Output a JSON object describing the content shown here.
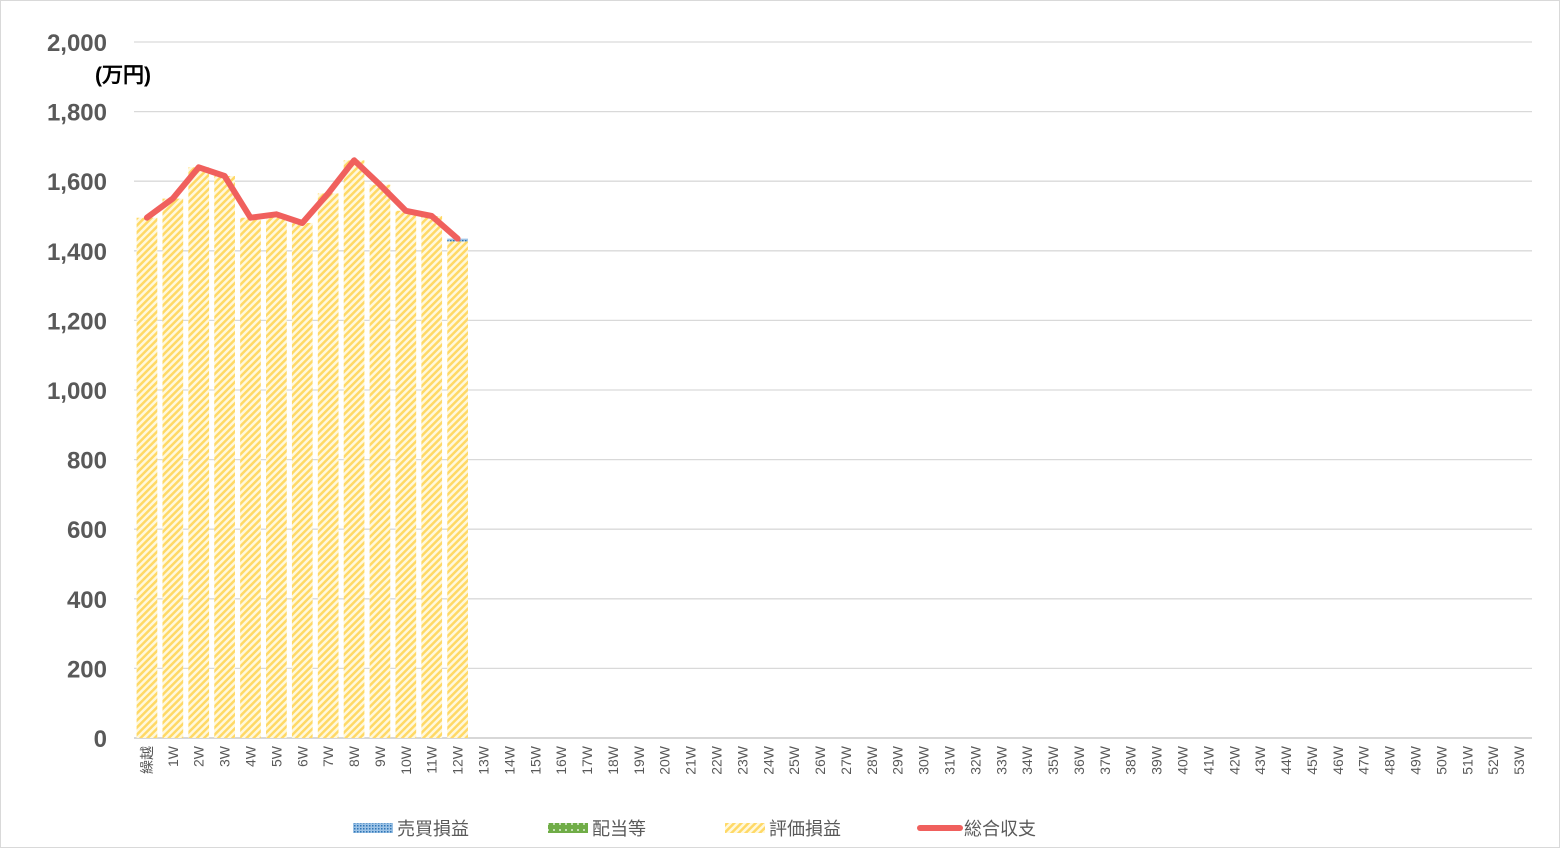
{
  "chart_data": {
    "type": "bar",
    "unit_label": "(万円)",
    "ylim": [
      0,
      2000
    ],
    "yticks": [
      0,
      200,
      400,
      600,
      800,
      1000,
      1200,
      1400,
      1600,
      1800,
      2000
    ],
    "ytick_labels": [
      "0",
      "200",
      "400",
      "600",
      "800",
      "1,000",
      "1,200",
      "1,400",
      "1,600",
      "1,800",
      "2,000"
    ],
    "grid": true,
    "legend_position": "bottom",
    "categories": [
      "繰越",
      "1W",
      "2W",
      "3W",
      "4W",
      "5W",
      "6W",
      "7W",
      "8W",
      "9W",
      "10W",
      "11W",
      "12W",
      "13W",
      "14W",
      "15W",
      "16W",
      "17W",
      "18W",
      "19W",
      "20W",
      "21W",
      "22W",
      "23W",
      "24W",
      "25W",
      "26W",
      "27W",
      "28W",
      "29W",
      "30W",
      "31W",
      "32W",
      "33W",
      "34W",
      "35W",
      "36W",
      "37W",
      "38W",
      "39W",
      "40W",
      "41W",
      "42W",
      "43W",
      "44W",
      "45W",
      "46W",
      "47W",
      "48W",
      "49W",
      "50W",
      "51W",
      "52W",
      "53W"
    ],
    "series": [
      {
        "name": "売買損益",
        "type": "bar",
        "color": "#5b9bd5",
        "values": [
          0,
          0,
          0,
          0,
          0,
          0,
          0,
          0,
          0,
          0,
          0,
          0,
          8,
          null,
          null,
          null,
          null,
          null,
          null,
          null,
          null,
          null,
          null,
          null,
          null,
          null,
          null,
          null,
          null,
          null,
          null,
          null,
          null,
          null,
          null,
          null,
          null,
          null,
          null,
          null,
          null,
          null,
          null,
          null,
          null,
          null,
          null,
          null,
          null,
          null,
          null,
          null,
          null,
          null
        ]
      },
      {
        "name": "配当等",
        "type": "bar",
        "color": "#70ad47",
        "values": [
          0,
          0,
          0,
          0,
          0,
          0,
          0,
          0,
          0,
          0,
          0,
          0,
          0,
          null,
          null,
          null,
          null,
          null,
          null,
          null,
          null,
          null,
          null,
          null,
          null,
          null,
          null,
          null,
          null,
          null,
          null,
          null,
          null,
          null,
          null,
          null,
          null,
          null,
          null,
          null,
          null,
          null,
          null,
          null,
          null,
          null,
          null,
          null,
          null,
          null,
          null,
          null,
          null,
          null
        ]
      },
      {
        "name": "評価損益",
        "type": "bar",
        "color": "#ffd966",
        "values": [
          1495,
          1550,
          1640,
          1615,
          1495,
          1505,
          1480,
          1565,
          1660,
          1590,
          1515,
          1500,
          1427,
          null,
          null,
          null,
          null,
          null,
          null,
          null,
          null,
          null,
          null,
          null,
          null,
          null,
          null,
          null,
          null,
          null,
          null,
          null,
          null,
          null,
          null,
          null,
          null,
          null,
          null,
          null,
          null,
          null,
          null,
          null,
          null,
          null,
          null,
          null,
          null,
          null,
          null,
          null,
          null,
          null
        ]
      },
      {
        "name": "総合収支",
        "type": "line",
        "color": "#f0605d",
        "values": [
          1495,
          1550,
          1640,
          1615,
          1495,
          1505,
          1480,
          1565,
          1660,
          1590,
          1515,
          1500,
          1435,
          null,
          null,
          null,
          null,
          null,
          null,
          null,
          null,
          null,
          null,
          null,
          null,
          null,
          null,
          null,
          null,
          null,
          null,
          null,
          null,
          null,
          null,
          null,
          null,
          null,
          null,
          null,
          null,
          null,
          null,
          null,
          null,
          null,
          null,
          null,
          null,
          null,
          null,
          null,
          null,
          null
        ]
      }
    ]
  }
}
